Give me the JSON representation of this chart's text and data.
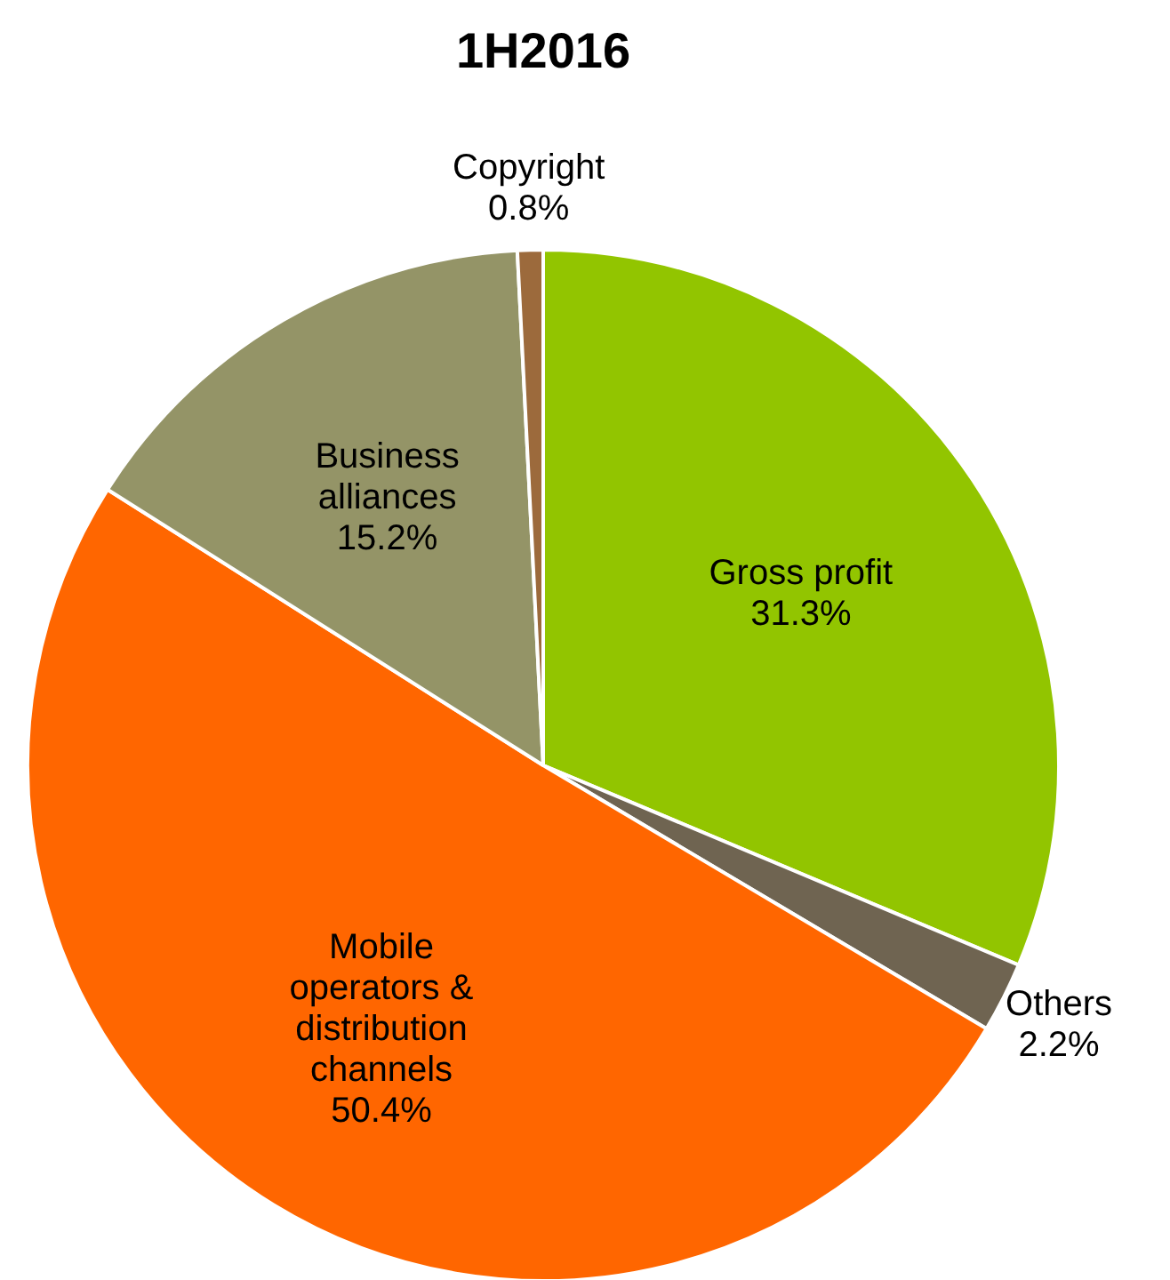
{
  "chart_data": {
    "type": "pie",
    "title": "1H2016",
    "categories": [
      "Gross profit",
      "Others",
      "Mobile operators & distribution channels",
      "Business alliances",
      "Copyright"
    ],
    "values": [
      31.3,
      2.2,
      50.4,
      15.2,
      0.8
    ],
    "value_labels": [
      "31.3%",
      "2.2%",
      "50.4%",
      "15.2%",
      "0.8%"
    ],
    "colors": [
      "#92c500",
      "#6f6451",
      "#ff6600",
      "#949467",
      "#9c6a3c"
    ]
  }
}
